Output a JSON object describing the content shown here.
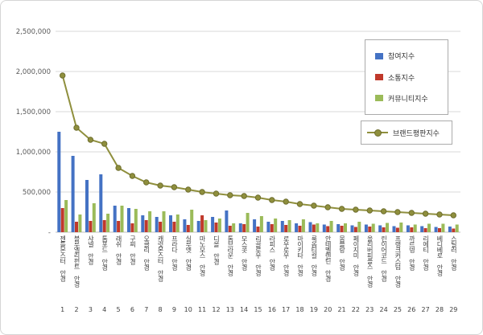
{
  "chart_data": {
    "type": "bar",
    "title": "",
    "xlabel": "",
    "ylabel": "",
    "ylim": [
      0,
      2500000
    ],
    "y_tick_labels": [
      "2,500,000",
      "2,000,000",
      "1,500,000",
      "1,000,000",
      "500,000",
      "-"
    ],
    "grid": true,
    "gridline_color": "#d9d9d9",
    "legend_position": "upper-right",
    "categories": [
      "젠틀몬스터 안경",
      "블루엘리펀트 안경",
      "샤넬 안경",
      "톰포드 안경",
      "래쉬 안경",
      "구찌 안경",
      "오클리 안경",
      "캐럿몬스터 안경",
      "프라다 안경",
      "실루엣 안경",
      "마노모스 안경",
      "디올 안경",
      "톰브라운 안경",
      "모스콧 안경",
      "리끌로우 안경",
      "라피스 안경",
      "로우로우 안경",
      "마이키타 안경",
      "룩옵티컬 안경",
      "안테벨렌틴 안경",
      "몽블랑 안경",
      "페이지미 안경",
      "올리버피플스 안경",
      "린이어코드 안경",
      "프랭크커스텀 안경",
      "까르뎅 안경",
      "리에티 안경",
      "베디베로 안경",
      "스틸러 안경"
    ],
    "category_indices": [
      "1",
      "2",
      "3",
      "4",
      "5",
      "6",
      "7",
      "8",
      "9",
      "10",
      "11",
      "12",
      "13",
      "14",
      "15",
      "16",
      "17",
      "18",
      "19",
      "20",
      "21",
      "22",
      "23",
      "24",
      "25",
      "26",
      "27",
      "28",
      "29"
    ],
    "series": [
      {
        "name": "참여지수",
        "type": "bar",
        "color": "#4472C4",
        "values": [
          1250000,
          950000,
          650000,
          720000,
          330000,
          300000,
          210000,
          190000,
          210000,
          160000,
          140000,
          190000,
          270000,
          110000,
          160000,
          130000,
          140000,
          110000,
          125000,
          95000,
          100000,
          85000,
          95000,
          85000,
          75000,
          85000,
          75000,
          65000,
          70000
        ]
      },
      {
        "name": "소통지수",
        "type": "bar",
        "color": "#C0392B",
        "values": [
          300000,
          130000,
          140000,
          150000,
          140000,
          110000,
          150000,
          130000,
          130000,
          90000,
          210000,
          120000,
          80000,
          100000,
          70000,
          100000,
          90000,
          80000,
          95000,
          75000,
          80000,
          65000,
          70000,
          60000,
          55000,
          60000,
          50000,
          50000,
          45000
        ]
      },
      {
        "name": "커뮤니티지수",
        "type": "bar",
        "color": "#9BBB59",
        "values": [
          400000,
          220000,
          360000,
          230000,
          330000,
          290000,
          260000,
          260000,
          220000,
          280000,
          150000,
          170000,
          110000,
          240000,
          200000,
          170000,
          150000,
          160000,
          110000,
          140000,
          110000,
          130000,
          105000,
          115000,
          120000,
          95000,
          105000,
          105000,
          95000
        ]
      },
      {
        "name": "브랜드평판지수",
        "type": "line",
        "color": "#8F8F3D",
        "marker_stroke": "#6E6E2E",
        "values": [
          1950000,
          1300000,
          1150000,
          1100000,
          800000,
          700000,
          620000,
          580000,
          560000,
          530000,
          500000,
          480000,
          460000,
          450000,
          430000,
          400000,
          380000,
          350000,
          330000,
          310000,
          290000,
          280000,
          270000,
          260000,
          250000,
          240000,
          230000,
          220000,
          210000
        ]
      }
    ]
  }
}
